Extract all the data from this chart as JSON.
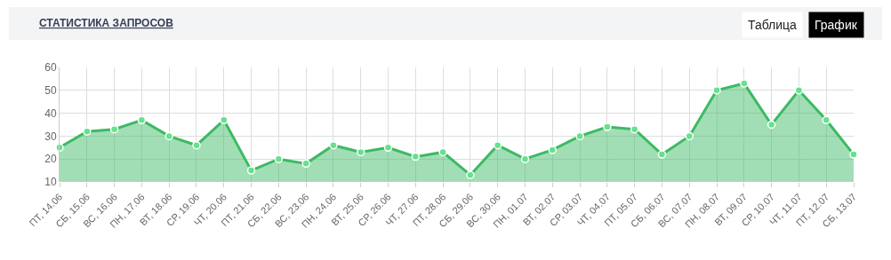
{
  "chart_data": {
    "type": "area",
    "title": "СТАТИСТИКА ЗАПРОСОВ",
    "annotations": [
      "Таблица",
      "График"
    ],
    "categories": [
      "ПТ, 14.06",
      "СБ, 15.06",
      "ВС, 16.06",
      "ПН, 17.06",
      "ВТ, 18.06",
      "СР, 19.06",
      "ЧТ, 20.06",
      "ПТ, 21.06",
      "СБ, 22.06",
      "ВС, 23.06",
      "ПН, 24.06",
      "ВТ, 25.06",
      "СР, 26.06",
      "ЧТ, 27.06",
      "ПТ, 28.06",
      "СБ, 29.06",
      "ВС, 30.06",
      "ПН, 01.07",
      "ВТ, 02.07",
      "СР, 03.07",
      "ЧТ, 04.07",
      "ПТ, 05.07",
      "СБ, 06.07",
      "ВС, 07.07",
      "ПН, 08.07",
      "ВТ, 09.07",
      "СР, 10.07",
      "ЧТ, 11.07",
      "ПТ, 12.07",
      "СБ, 13.07"
    ],
    "series": [
      {
        "color": "#3cba64",
        "values": [
          25,
          32,
          33,
          37,
          30,
          26,
          37,
          15,
          20,
          18,
          26,
          23,
          25,
          21,
          23,
          13,
          26,
          20,
          24,
          30,
          34,
          33,
          22,
          30,
          50,
          53,
          35,
          50,
          37,
          22
        ]
      }
    ],
    "ylim": [
      10,
      60
    ],
    "yticks": [
      10,
      20,
      30,
      40,
      50,
      60
    ],
    "grid": true,
    "marker": "circle",
    "line_style": "solid"
  }
}
